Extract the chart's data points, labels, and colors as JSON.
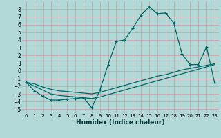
{
  "xlabel": "Humidex (Indice chaleur)",
  "xlim": [
    -0.5,
    23.5
  ],
  "ylim": [
    -5.5,
    9.0
  ],
  "yticks": [
    -5,
    -4,
    -3,
    -2,
    -1,
    0,
    1,
    2,
    3,
    4,
    5,
    6,
    7,
    8
  ],
  "xticks": [
    0,
    1,
    2,
    3,
    4,
    5,
    6,
    7,
    8,
    9,
    10,
    11,
    12,
    13,
    14,
    15,
    16,
    17,
    18,
    19,
    20,
    21,
    22,
    23
  ],
  "background_color": "#b2d8d8",
  "grid_color": "#c8a0a0",
  "line_color": "#006666",
  "series1_x": [
    0,
    1,
    2,
    3,
    4,
    5,
    6,
    7,
    8,
    9,
    10,
    11,
    12,
    13,
    14,
    15,
    16,
    17,
    18,
    19,
    20,
    21,
    22,
    23
  ],
  "series1_y": [
    -1.5,
    -2.6,
    -3.3,
    -3.8,
    -3.8,
    -3.7,
    -3.6,
    -3.5,
    -4.8,
    -2.5,
    0.8,
    3.8,
    4.0,
    5.5,
    7.2,
    8.3,
    7.4,
    7.5,
    6.2,
    2.2,
    0.8,
    0.8,
    3.1,
    -1.6
  ],
  "series2_x": [
    0,
    1,
    2,
    3,
    4,
    5,
    6,
    7,
    8,
    9,
    10,
    11,
    12,
    13,
    14,
    15,
    16,
    17,
    18,
    19,
    20,
    21,
    22,
    23
  ],
  "series2_y": [
    -1.5,
    -1.7,
    -2.1,
    -2.4,
    -2.6,
    -2.7,
    -2.8,
    -2.9,
    -3.0,
    -2.8,
    -2.5,
    -2.2,
    -1.9,
    -1.6,
    -1.3,
    -1.0,
    -0.7,
    -0.5,
    -0.2,
    0.1,
    0.3,
    0.5,
    0.7,
    0.9
  ],
  "series3_x": [
    0,
    1,
    2,
    3,
    4,
    5,
    6,
    7,
    8,
    9,
    10,
    11,
    12,
    13,
    14,
    15,
    16,
    17,
    18,
    19,
    20,
    21,
    22,
    23
  ],
  "series3_y": [
    -1.5,
    -2.0,
    -2.5,
    -3.0,
    -3.2,
    -3.3,
    -3.4,
    -3.5,
    -3.6,
    -3.4,
    -3.1,
    -2.8,
    -2.5,
    -2.2,
    -1.9,
    -1.6,
    -1.3,
    -1.0,
    -0.7,
    -0.4,
    -0.1,
    0.2,
    0.5,
    0.8
  ]
}
